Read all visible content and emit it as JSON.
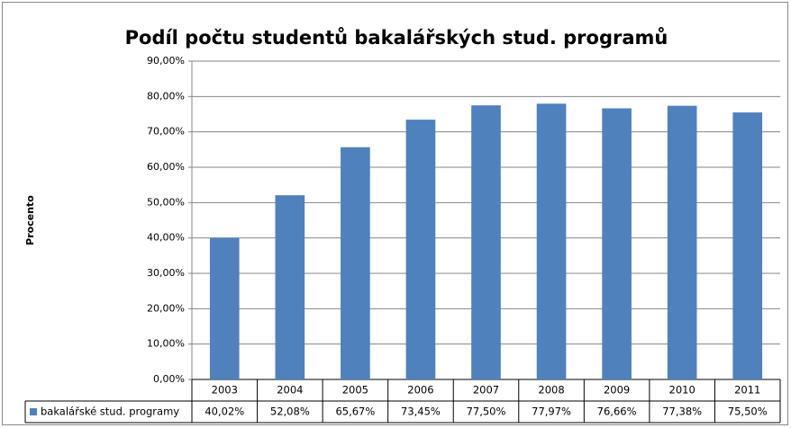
{
  "chart_data": {
    "type": "bar",
    "title": "Podíl počtu studentů bakalářských stud. programů",
    "y_label": "Procento",
    "categories": [
      "2003",
      "2004",
      "2005",
      "2006",
      "2007",
      "2008",
      "2009",
      "2010",
      "2011"
    ],
    "series": [
      {
        "name": "bakalářské stud. programy",
        "color": "#4f81bd",
        "values": [
          40.02,
          52.08,
          65.67,
          73.45,
          77.5,
          77.97,
          76.66,
          77.38,
          75.5
        ],
        "value_labels": [
          "40,02%",
          "52,08%",
          "65,67%",
          "73,45%",
          "77,50%",
          "77,97%",
          "76,66%",
          "77,38%",
          "75,50%"
        ]
      }
    ],
    "ylim": [
      0,
      90
    ],
    "yticks": [
      {
        "value": 0,
        "label": "0,00%"
      },
      {
        "value": 10,
        "label": "10,00%"
      },
      {
        "value": 20,
        "label": "20,00%"
      },
      {
        "value": 30,
        "label": "30,00%"
      },
      {
        "value": 40,
        "label": "40,00%"
      },
      {
        "value": 50,
        "label": "50,00%"
      },
      {
        "value": 60,
        "label": "60,00%"
      },
      {
        "value": 70,
        "label": "70,00%"
      },
      {
        "value": 80,
        "label": "80,00%"
      },
      {
        "value": 90,
        "label": "90,00%"
      }
    ],
    "grid": true,
    "legend": "data-table"
  }
}
